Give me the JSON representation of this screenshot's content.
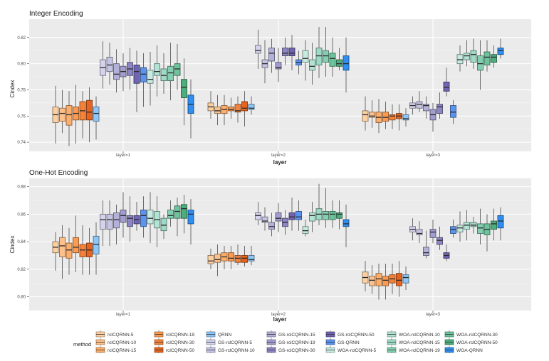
{
  "chart_data": [
    {
      "type": "boxplot",
      "title": "Integer Encoding",
      "xlabel": "layer",
      "ylabel": "Cindex",
      "categories": [
        "layer=1",
        "layer=2",
        "layer=3"
      ],
      "ylim": [
        0.733,
        0.834
      ],
      "yticks": [
        0.74,
        0.76,
        0.78,
        0.8,
        0.82
      ],
      "ytick_labels": [
        "0.74",
        "0.76",
        "0.78",
        "0.80",
        "0.82"
      ],
      "grid": true,
      "series_stats_order": [
        "min",
        "q1",
        "median",
        "q3",
        "max"
      ],
      "layers": [
        [
          [
            0.739,
            0.755,
            0.761,
            0.767,
            0.783
          ],
          [
            0.747,
            0.756,
            0.762,
            0.766,
            0.78
          ],
          [
            0.737,
            0.753,
            0.761,
            0.768,
            0.779
          ],
          [
            0.739,
            0.757,
            0.762,
            0.767,
            0.784
          ],
          [
            0.743,
            0.757,
            0.764,
            0.771,
            0.779
          ],
          [
            0.74,
            0.757,
            0.763,
            0.772,
            0.782
          ],
          [
            0.742,
            0.756,
            0.762,
            0.767,
            0.775
          ],
          [
            0.781,
            0.791,
            0.797,
            0.803,
            0.817
          ],
          [
            0.784,
            0.794,
            0.799,
            0.805,
            0.816
          ],
          [
            0.778,
            0.788,
            0.792,
            0.8,
            0.811
          ],
          [
            0.779,
            0.79,
            0.794,
            0.798,
            0.808
          ],
          [
            0.78,
            0.791,
            0.796,
            0.801,
            0.812
          ],
          [
            0.763,
            0.785,
            0.794,
            0.799,
            0.81
          ],
          [
            0.767,
            0.786,
            0.792,
            0.797,
            0.808
          ],
          [
            0.768,
            0.785,
            0.788,
            0.795,
            0.809
          ],
          [
            0.775,
            0.791,
            0.794,
            0.8,
            0.814
          ],
          [
            0.777,
            0.787,
            0.791,
            0.796,
            0.808
          ],
          [
            0.772,
            0.787,
            0.793,
            0.798,
            0.816
          ],
          [
            0.78,
            0.791,
            0.796,
            0.8,
            0.815
          ],
          [
            0.753,
            0.774,
            0.782,
            0.788,
            0.804
          ],
          [
            0.743,
            0.762,
            0.769,
            0.776,
            0.788
          ]
        ],
        [
          [
            0.758,
            0.764,
            0.767,
            0.77,
            0.779
          ],
          [
            0.753,
            0.762,
            0.764,
            0.767,
            0.776
          ],
          [
            0.753,
            0.762,
            0.765,
            0.768,
            0.776
          ],
          [
            0.758,
            0.764,
            0.765,
            0.767,
            0.774
          ],
          [
            0.755,
            0.763,
            0.764,
            0.769,
            0.775
          ],
          [
            0.752,
            0.764,
            0.766,
            0.771,
            0.779
          ],
          [
            0.761,
            0.765,
            0.766,
            0.769,
            0.775
          ],
          [
            0.796,
            0.808,
            0.81,
            0.814,
            0.826
          ],
          [
            0.785,
            0.797,
            0.8,
            0.803,
            0.818
          ],
          [
            0.793,
            0.802,
            0.808,
            0.812,
            0.819
          ],
          [
            0.786,
            0.796,
            0.797,
            0.801,
            0.812
          ],
          [
            0.799,
            0.806,
            0.808,
            0.812,
            0.82
          ],
          [
            0.795,
            0.806,
            0.808,
            0.812,
            0.822
          ],
          [
            0.792,
            0.799,
            0.801,
            0.803,
            0.81
          ],
          [
            0.787,
            0.801,
            0.804,
            0.81,
            0.818
          ],
          [
            0.784,
            0.795,
            0.798,
            0.803,
            0.816
          ],
          [
            0.789,
            0.799,
            0.806,
            0.812,
            0.828
          ],
          [
            0.79,
            0.801,
            0.806,
            0.81,
            0.828
          ],
          [
            0.79,
            0.798,
            0.804,
            0.808,
            0.82
          ],
          [
            0.795,
            0.798,
            0.8,
            0.803,
            0.812
          ],
          [
            0.778,
            0.795,
            0.8,
            0.806,
            0.82
          ]
        ],
        [
          [
            0.749,
            0.756,
            0.761,
            0.764,
            0.775
          ],
          [
            0.751,
            0.759,
            0.76,
            0.763,
            0.772
          ],
          [
            0.747,
            0.755,
            0.759,
            0.763,
            0.773
          ],
          [
            0.75,
            0.756,
            0.759,
            0.763,
            0.771
          ],
          [
            0.75,
            0.757,
            0.76,
            0.761,
            0.769
          ],
          [
            0.749,
            0.758,
            0.76,
            0.762,
            0.769
          ],
          [
            0.752,
            0.757,
            0.758,
            0.761,
            0.766
          ],
          [
            0.761,
            0.766,
            0.768,
            0.77,
            0.775
          ],
          [
            0.763,
            0.766,
            0.769,
            0.771,
            0.779
          ],
          [
            0.758,
            0.764,
            0.768,
            0.769,
            0.775
          ],
          [
            0.748,
            0.757,
            0.761,
            0.765,
            0.77
          ],
          [
            0.758,
            0.762,
            0.767,
            0.769,
            0.778
          ],
          [
            0.775,
            0.779,
            0.782,
            0.786,
            0.797
          ],
          [
            0.754,
            0.759,
            0.763,
            0.768,
            0.772
          ],
          [
            0.794,
            0.8,
            0.803,
            0.807,
            0.814
          ],
          [
            0.798,
            0.803,
            0.806,
            0.808,
            0.818
          ],
          [
            0.796,
            0.801,
            0.807,
            0.81,
            0.819
          ],
          [
            0.78,
            0.795,
            0.8,
            0.806,
            0.818
          ],
          [
            0.794,
            0.799,
            0.805,
            0.809,
            0.818
          ],
          [
            0.797,
            0.801,
            0.805,
            0.807,
            0.814
          ],
          [
            0.804,
            0.807,
            0.81,
            0.812,
            0.819
          ]
        ]
      ]
    },
    {
      "type": "boxplot",
      "title": "One-Hot Encoding",
      "xlabel": "layer",
      "ylabel": "Cindex",
      "categories": [
        "layer=1",
        "layer=2",
        "layer=3"
      ],
      "ylim": [
        0.79,
        0.886
      ],
      "yticks": [
        0.8,
        0.82,
        0.84,
        0.86,
        0.88
      ],
      "ytick_labels": [
        "0.80",
        "0.82",
        "0.84",
        "0.86",
        "0.88"
      ],
      "grid": true,
      "series_stats_order": [
        "min",
        "q1",
        "median",
        "q3",
        "max"
      ],
      "layers": [
        [
          [
            0.819,
            0.832,
            0.836,
            0.84,
            0.847
          ],
          [
            0.813,
            0.829,
            0.837,
            0.843,
            0.852
          ],
          [
            0.816,
            0.828,
            0.834,
            0.839,
            0.85
          ],
          [
            0.818,
            0.832,
            0.836,
            0.843,
            0.859
          ],
          [
            0.816,
            0.829,
            0.834,
            0.838,
            0.852
          ],
          [
            0.816,
            0.829,
            0.834,
            0.839,
            0.85
          ],
          [
            0.816,
            0.831,
            0.838,
            0.844,
            0.854
          ],
          [
            0.837,
            0.849,
            0.856,
            0.86,
            0.87
          ],
          [
            0.837,
            0.849,
            0.856,
            0.86,
            0.87
          ],
          [
            0.838,
            0.85,
            0.856,
            0.861,
            0.867
          ],
          [
            0.843,
            0.854,
            0.859,
            0.863,
            0.876
          ],
          [
            0.84,
            0.851,
            0.857,
            0.859,
            0.873
          ],
          [
            0.848,
            0.853,
            0.856,
            0.859,
            0.869
          ],
          [
            0.843,
            0.851,
            0.859,
            0.863,
            0.873
          ],
          [
            0.839,
            0.853,
            0.857,
            0.863,
            0.876
          ],
          [
            0.836,
            0.85,
            0.856,
            0.862,
            0.873
          ],
          [
            0.842,
            0.848,
            0.852,
            0.857,
            0.86
          ],
          [
            0.851,
            0.857,
            0.859,
            0.863,
            0.87
          ],
          [
            0.844,
            0.857,
            0.862,
            0.866,
            0.872
          ],
          [
            0.846,
            0.857,
            0.864,
            0.867,
            0.874
          ],
          [
            0.838,
            0.853,
            0.86,
            0.863,
            0.871
          ]
        ],
        [
          [
            0.82,
            0.824,
            0.826,
            0.83,
            0.835
          ],
          [
            0.815,
            0.825,
            0.827,
            0.831,
            0.838
          ],
          [
            0.82,
            0.826,
            0.829,
            0.832,
            0.837
          ],
          [
            0.82,
            0.826,
            0.828,
            0.832,
            0.837
          ],
          [
            0.823,
            0.825,
            0.828,
            0.83,
            0.838
          ],
          [
            0.822,
            0.825,
            0.828,
            0.83,
            0.837
          ],
          [
            0.823,
            0.826,
            0.827,
            0.83,
            0.837
          ],
          [
            0.852,
            0.856,
            0.859,
            0.861,
            0.869
          ],
          [
            0.848,
            0.854,
            0.855,
            0.858,
            0.865
          ],
          [
            0.844,
            0.849,
            0.851,
            0.854,
            0.861
          ],
          [
            0.847,
            0.855,
            0.857,
            0.861,
            0.868
          ],
          [
            0.845,
            0.851,
            0.854,
            0.857,
            0.863
          ],
          [
            0.848,
            0.856,
            0.858,
            0.861,
            0.872
          ],
          [
            0.848,
            0.856,
            0.858,
            0.862,
            0.87
          ],
          [
            0.844,
            0.846,
            0.848,
            0.851,
            0.856
          ],
          [
            0.847,
            0.855,
            0.859,
            0.861,
            0.869
          ],
          [
            0.852,
            0.856,
            0.86,
            0.864,
            0.882
          ],
          [
            0.85,
            0.856,
            0.86,
            0.862,
            0.879
          ],
          [
            0.85,
            0.856,
            0.86,
            0.862,
            0.87
          ],
          [
            0.849,
            0.857,
            0.86,
            0.861,
            0.87
          ],
          [
            0.836,
            0.851,
            0.853,
            0.856,
            0.867
          ]
        ],
        [
          [
            0.804,
            0.81,
            0.814,
            0.818,
            0.826
          ],
          [
            0.802,
            0.808,
            0.812,
            0.815,
            0.823
          ],
          [
            0.798,
            0.808,
            0.813,
            0.817,
            0.824
          ],
          [
            0.798,
            0.808,
            0.812,
            0.815,
            0.824
          ],
          [
            0.802,
            0.81,
            0.813,
            0.816,
            0.824
          ],
          [
            0.8,
            0.808,
            0.812,
            0.817,
            0.826
          ],
          [
            0.805,
            0.81,
            0.814,
            0.816,
            0.822
          ],
          [
            0.841,
            0.847,
            0.849,
            0.851,
            0.857
          ],
          [
            0.839,
            0.845,
            0.846,
            0.849,
            0.855
          ],
          [
            0.828,
            0.83,
            0.832,
            0.836,
            0.848
          ],
          [
            0.839,
            0.843,
            0.847,
            0.849,
            0.856
          ],
          [
            0.834,
            0.838,
            0.841,
            0.843,
            0.851
          ],
          [
            0.826,
            0.828,
            0.83,
            0.832,
            0.838
          ],
          [
            0.843,
            0.846,
            0.849,
            0.851,
            0.856
          ],
          [
            0.84,
            0.847,
            0.85,
            0.852,
            0.862
          ],
          [
            0.841,
            0.849,
            0.852,
            0.854,
            0.863
          ],
          [
            0.846,
            0.851,
            0.852,
            0.854,
            0.858
          ],
          [
            0.838,
            0.846,
            0.85,
            0.853,
            0.864
          ],
          [
            0.833,
            0.845,
            0.849,
            0.853,
            0.86
          ],
          [
            0.841,
            0.849,
            0.853,
            0.855,
            0.864
          ],
          [
            0.841,
            0.85,
            0.855,
            0.859,
            0.865
          ]
        ]
      ]
    }
  ],
  "legend": {
    "title": "method",
    "position": "bottom",
    "items": [
      {
        "label": "rclCQRNN-5",
        "color": "#fdd0a2"
      },
      {
        "label": "rclCQRNN-10",
        "color": "#fdc08b"
      },
      {
        "label": "rclCQRNN-15",
        "color": "#fdae6b"
      },
      {
        "label": "rclCQRNN-19",
        "color": "#fd9a4f"
      },
      {
        "label": "rclCQRNN-30",
        "color": "#f3823a"
      },
      {
        "label": "rclCQRNN-50",
        "color": "#e6641d"
      },
      {
        "label": "QRNN",
        "color": "#8ec7f7"
      },
      {
        "label": "GS-rclCQRNN-5",
        "color": "#d4d2ec"
      },
      {
        "label": "GS-rclCQRNN-10",
        "color": "#c6c4e4"
      },
      {
        "label": "GS-rclCQRNN-15",
        "color": "#b3b0da"
      },
      {
        "label": "GS-rclCQRNN-19",
        "color": "#a19dd0"
      },
      {
        "label": "GS-rclCQRNN-30",
        "color": "#8d86c4"
      },
      {
        "label": "GS-rclCQRNN-50",
        "color": "#6f65b3"
      },
      {
        "label": "GS-QRNN",
        "color": "#5b93f0"
      },
      {
        "label": "WOA-rclCQRNN-5",
        "color": "#c7ebe1"
      },
      {
        "label": "WOA-rclCQRNN-10",
        "color": "#b3e3d5"
      },
      {
        "label": "WOA-rclCQRNN-15",
        "color": "#9ddac6"
      },
      {
        "label": "WOA-rclCQRNN-19",
        "color": "#84cfb2"
      },
      {
        "label": "WOA-rclCQRNN-30",
        "color": "#6cc39c"
      },
      {
        "label": "WOA-rclCQRNN-50",
        "color": "#4bae7c"
      },
      {
        "label": "WOA-QRNN",
        "color": "#2f8ff0"
      }
    ]
  }
}
